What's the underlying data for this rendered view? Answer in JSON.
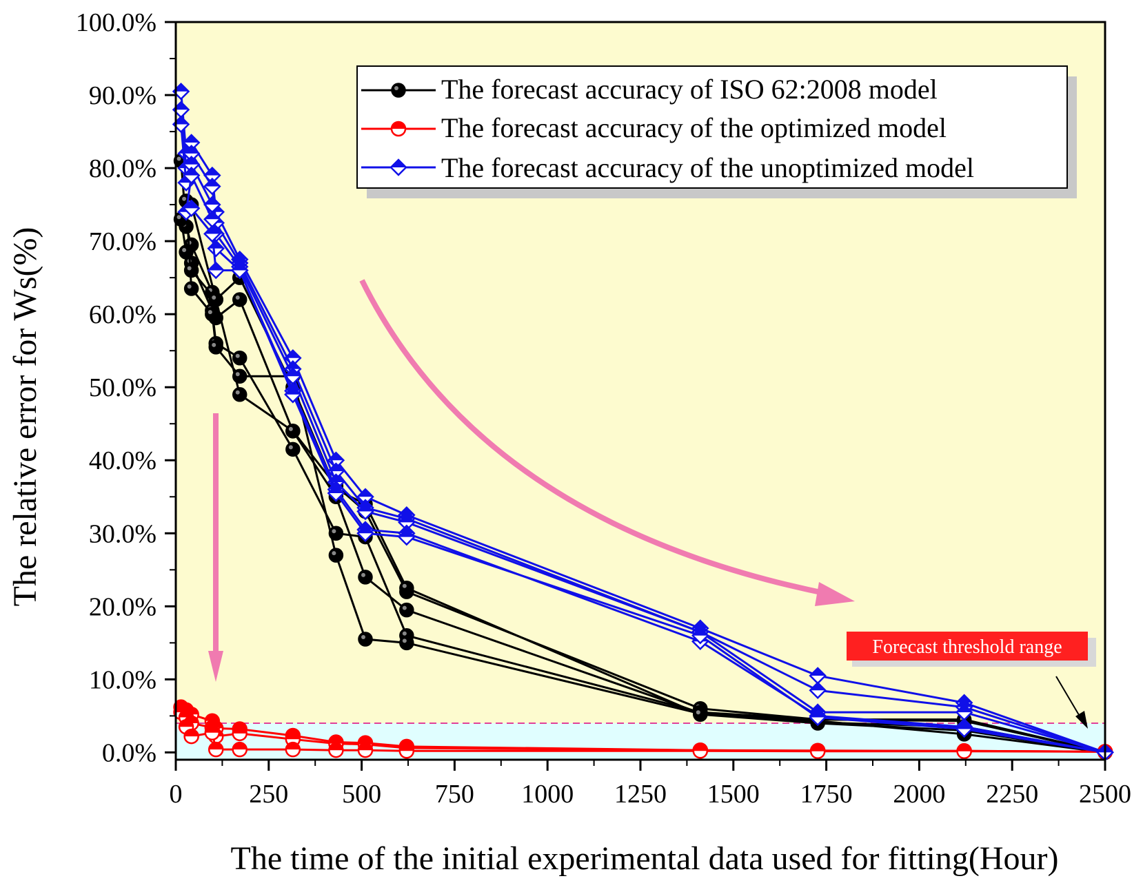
{
  "colors": {
    "plot_background": "#fdfbcf",
    "threshold_band": "#e0feff",
    "iso_series": "#000000",
    "optimized_series": "#ff0000",
    "unoptimized_series": "#1010e8",
    "arrow_color": "#f07bb0",
    "threshold_line": "#e0409a",
    "label_box": "#ff2020"
  },
  "chart_data": {
    "type": "line",
    "title": "",
    "xlabel": "The time of the initial experimental data used for fitting(Hour)",
    "ylabel": "The relative error for Ws(%)",
    "xlim": [
      0,
      2500
    ],
    "ylim": [
      -1,
      100
    ],
    "x_ticks": [
      0,
      250,
      500,
      750,
      1000,
      1250,
      1500,
      1750,
      2000,
      2250,
      2500
    ],
    "x_tick_labels": [
      "0",
      "250",
      "500",
      "750",
      "1000",
      "1250",
      "1500",
      "1750",
      "2000",
      "2250",
      "2500"
    ],
    "y_ticks": [
      0,
      10,
      20,
      30,
      40,
      50,
      60,
      70,
      80,
      90,
      100
    ],
    "y_tick_labels": [
      "0.0%",
      "10.0%",
      "20.0%",
      "30.0%",
      "40.0%",
      "50.0%",
      "60.0%",
      "70.0%",
      "80.0%",
      "90.0%",
      "100.0%"
    ],
    "legend": [
      {
        "label": "The forecast accuracy of  ISO 62:2008 model",
        "series": "iso",
        "marker": "circle"
      },
      {
        "label": "The forecast accuracy of the optimized model",
        "series": "optimized",
        "marker": "circle-half"
      },
      {
        "label": "The forecast accuracy of the unoptimized model",
        "series": "unoptimized",
        "marker": "diamond-half"
      }
    ],
    "legend_position": "top-right",
    "threshold": {
      "value": 4,
      "label": "Forecast threshold range"
    },
    "annotations": [
      {
        "type": "arrow",
        "description": "downward arrow near optimized model"
      },
      {
        "type": "arrow",
        "description": "curved arrow showing decreasing error"
      },
      {
        "type": "arrow",
        "description": "pointer to threshold line"
      }
    ],
    "series": [
      {
        "name": "iso-1",
        "group": "iso",
        "points": [
          [
            14,
            81
          ],
          [
            28,
            72
          ],
          [
            42,
            69.5
          ],
          [
            98,
            63
          ],
          [
            108,
            59.5
          ],
          [
            172,
            62
          ],
          [
            315,
            44
          ],
          [
            431,
            36.5
          ],
          [
            510,
            33
          ],
          [
            621,
            22
          ],
          [
            1411,
            6
          ],
          [
            1727,
            4.5
          ],
          [
            2121,
            4.5
          ],
          [
            2500,
            0
          ]
        ]
      },
      {
        "name": "iso-2",
        "group": "iso",
        "points": [
          [
            14,
            73
          ],
          [
            28,
            68.5
          ],
          [
            42,
            67
          ],
          [
            98,
            60.5
          ],
          [
            108,
            56
          ],
          [
            172,
            54
          ],
          [
            315,
            41.5
          ],
          [
            431,
            30
          ],
          [
            510,
            29.5
          ],
          [
            621,
            16
          ],
          [
            1411,
            5.5
          ],
          [
            1727,
            4.5
          ],
          [
            2121,
            4.3
          ],
          [
            2500,
            0
          ]
        ]
      },
      {
        "name": "iso-3",
        "group": "iso",
        "points": [
          [
            28,
            75.5
          ],
          [
            42,
            63.5
          ],
          [
            98,
            60
          ],
          [
            108,
            55.5
          ],
          [
            172,
            51.5
          ],
          [
            315,
            51.5
          ],
          [
            431,
            27
          ],
          [
            510,
            15.5
          ],
          [
            621,
            15
          ],
          [
            1411,
            5.3
          ],
          [
            1727,
            4.3
          ],
          [
            2121,
            2.5
          ],
          [
            2500,
            0
          ]
        ]
      },
      {
        "name": "iso-4",
        "group": "iso",
        "points": [
          [
            42,
            75
          ],
          [
            108,
            62
          ],
          [
            172,
            49
          ],
          [
            315,
            44
          ],
          [
            431,
            35
          ],
          [
            510,
            24
          ],
          [
            621,
            19.5
          ],
          [
            1411,
            5.4
          ],
          [
            1727,
            4.1
          ],
          [
            2121,
            3.5
          ],
          [
            2500,
            0
          ]
        ]
      },
      {
        "name": "iso-5",
        "group": "iso",
        "points": [
          [
            42,
            66
          ],
          [
            108,
            62
          ],
          [
            172,
            65
          ],
          [
            315,
            50
          ],
          [
            431,
            36
          ],
          [
            510,
            34
          ],
          [
            621,
            22.5
          ],
          [
            1411,
            5.2
          ],
          [
            1727,
            4.0
          ],
          [
            2121,
            3.0
          ],
          [
            2500,
            0
          ]
        ]
      },
      {
        "name": "opt-1",
        "group": "optimized",
        "points": [
          [
            14,
            6.2
          ],
          [
            28,
            5.8
          ],
          [
            42,
            5.2
          ],
          [
            98,
            4.3
          ],
          [
            108,
            3.3
          ],
          [
            172,
            3.2
          ],
          [
            315,
            2.3
          ],
          [
            431,
            1.4
          ],
          [
            510,
            1.3
          ],
          [
            621,
            0.8
          ],
          [
            1411,
            0.3
          ],
          [
            1727,
            0.25
          ],
          [
            2121,
            0.2
          ],
          [
            2500,
            0.1
          ]
        ]
      },
      {
        "name": "opt-2",
        "group": "optimized",
        "points": [
          [
            14,
            5.5
          ],
          [
            28,
            4.8
          ],
          [
            42,
            4.0
          ],
          [
            98,
            3.4
          ],
          [
            108,
            2.2
          ],
          [
            172,
            2.6
          ],
          [
            315,
            1.8
          ],
          [
            431,
            1.2
          ],
          [
            510,
            1.1
          ],
          [
            621,
            0.6
          ],
          [
            1411,
            0.3
          ],
          [
            1727,
            0.2
          ],
          [
            2121,
            0.2
          ],
          [
            2500,
            0.1
          ]
        ]
      },
      {
        "name": "opt-3",
        "group": "optimized",
        "points": [
          [
            28,
            3.5
          ],
          [
            42,
            2.2
          ],
          [
            98,
            2.7
          ],
          [
            108,
            0.4
          ],
          [
            172,
            0.4
          ],
          [
            315,
            0.4
          ],
          [
            431,
            0.3
          ],
          [
            510,
            0.3
          ],
          [
            621,
            0.2
          ],
          [
            1411,
            0.2
          ],
          [
            1727,
            0.15
          ],
          [
            2121,
            0.15
          ],
          [
            2500,
            0.1
          ]
        ]
      },
      {
        "name": "unopt-1",
        "group": "unoptimized",
        "points": [
          [
            14,
            90.5
          ],
          [
            28,
            82
          ],
          [
            42,
            83.5
          ],
          [
            98,
            79
          ],
          [
            108,
            74
          ],
          [
            172,
            67.5
          ],
          [
            315,
            54
          ],
          [
            431,
            40
          ],
          [
            510,
            35
          ],
          [
            621,
            32.5
          ],
          [
            1411,
            17
          ],
          [
            1727,
            10.5
          ],
          [
            2121,
            6.8
          ],
          [
            2500,
            0
          ]
        ]
      },
      {
        "name": "unopt-2",
        "group": "unoptimized",
        "points": [
          [
            14,
            88
          ],
          [
            28,
            80
          ],
          [
            42,
            82
          ],
          [
            98,
            77.5
          ],
          [
            108,
            72.5
          ],
          [
            172,
            67
          ],
          [
            315,
            52.5
          ],
          [
            431,
            38.5
          ],
          [
            510,
            33.5
          ],
          [
            621,
            32
          ],
          [
            1411,
            16.5
          ],
          [
            1727,
            8.5
          ],
          [
            2121,
            6.2
          ],
          [
            2500,
            0
          ]
        ]
      },
      {
        "name": "unopt-3",
        "group": "unoptimized",
        "points": [
          [
            14,
            86
          ],
          [
            28,
            78
          ],
          [
            42,
            80.5
          ],
          [
            98,
            75
          ],
          [
            108,
            71
          ],
          [
            172,
            66.5
          ],
          [
            315,
            51.5
          ],
          [
            431,
            37
          ],
          [
            510,
            33
          ],
          [
            621,
            31.5
          ],
          [
            1411,
            16.5
          ],
          [
            1727,
            5.5
          ],
          [
            2121,
            5.5
          ],
          [
            2500,
            0
          ]
        ]
      },
      {
        "name": "unopt-4",
        "group": "unoptimized",
        "points": [
          [
            28,
            74
          ],
          [
            42,
            79
          ],
          [
            98,
            73
          ],
          [
            108,
            69
          ],
          [
            172,
            66
          ],
          [
            315,
            49.5
          ],
          [
            431,
            36
          ],
          [
            510,
            30.5
          ],
          [
            621,
            30
          ],
          [
            1411,
            15.2
          ],
          [
            1727,
            5.0
          ],
          [
            2121,
            3.5
          ],
          [
            2500,
            0
          ]
        ]
      },
      {
        "name": "unopt-5",
        "group": "unoptimized",
        "points": [
          [
            42,
            74.5
          ],
          [
            98,
            71
          ],
          [
            108,
            66
          ],
          [
            172,
            66
          ],
          [
            315,
            49
          ],
          [
            431,
            35.5
          ],
          [
            510,
            30
          ],
          [
            621,
            29.5
          ],
          [
            1411,
            16
          ],
          [
            1727,
            4.8
          ],
          [
            2121,
            3.2
          ],
          [
            2500,
            0
          ]
        ]
      }
    ]
  }
}
